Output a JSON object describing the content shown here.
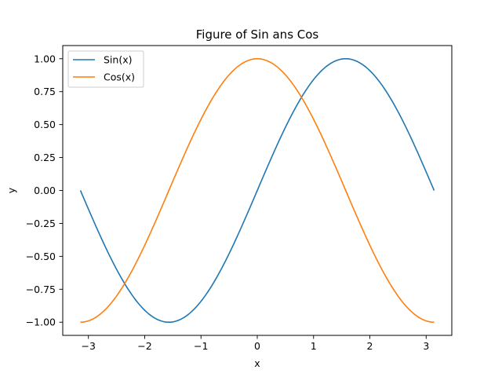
{
  "chart_data": {
    "type": "line",
    "title": "Figure of Sin ans Cos",
    "xlabel": "x",
    "ylabel": "y",
    "xlim": [
      -3.4558,
      3.4558
    ],
    "ylim": [
      -1.1,
      1.1
    ],
    "xticks": [
      -3,
      -2,
      -1,
      0,
      1,
      2,
      3
    ],
    "xtick_labels": [
      "−3",
      "−2",
      "−1",
      "0",
      "1",
      "2",
      "3"
    ],
    "yticks": [
      -1.0,
      -0.75,
      -0.5,
      -0.25,
      0.0,
      0.25,
      0.5,
      0.75,
      1.0
    ],
    "ytick_labels": [
      "−1.00",
      "−0.75",
      "−0.50",
      "−0.25",
      "0.00",
      "0.25",
      "0.50",
      "0.75",
      "1.00"
    ],
    "grid": false,
    "legend_position": "top-left",
    "x_range": [
      -3.14159,
      3.14159
    ],
    "series": [
      {
        "name": "Sin(x)",
        "function": "sin",
        "color": "#1f77b4"
      },
      {
        "name": "Cos(x)",
        "function": "cos",
        "color": "#ff7f0e"
      }
    ]
  }
}
